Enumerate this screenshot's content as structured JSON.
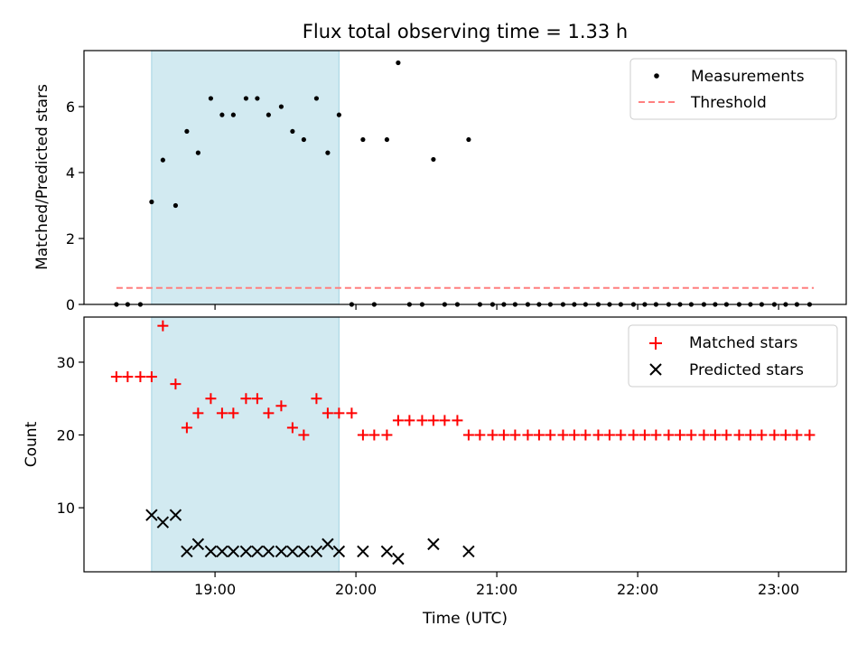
{
  "chart_data": {
    "type": "scatter",
    "title": "Flux total observing time = 1.33 h",
    "xlabel": "Time (UTC)",
    "x_ticks": [
      "19:00",
      "20:00",
      "21:00",
      "22:00",
      "23:00"
    ],
    "x_tick_hours": [
      19,
      20,
      21,
      22,
      23
    ],
    "xlim": [
      18.07,
      23.48
    ],
    "shaded_interval": {
      "start": 18.55,
      "end": 19.88,
      "color": "#add8e6"
    },
    "colors": {
      "measurements": "#000000",
      "threshold": "#ff7f7f",
      "matched": "#ff0000",
      "predicted": "#000000",
      "shade": "#add8e6"
    },
    "panels": [
      {
        "id": "top",
        "ylabel": "Matched/Predicted stars",
        "ylim": [
          0,
          7.7
        ],
        "y_ticks": [
          0,
          2,
          4,
          6
        ],
        "legend": {
          "placement": "top-right",
          "entries": [
            "Measurements",
            "Threshold"
          ]
        },
        "threshold": {
          "name": "Threshold",
          "value": 0.5,
          "x_range": [
            18.3,
            23.25
          ]
        },
        "series": [
          {
            "name": "Measurements",
            "marker": "dot",
            "x": [
              18.3,
              18.38,
              18.47,
              18.55,
              18.63,
              18.72,
              18.8,
              18.88,
              18.97,
              19.05,
              19.13,
              19.22,
              19.3,
              19.38,
              19.47,
              19.55,
              19.63,
              19.72,
              19.8,
              19.88,
              19.97,
              20.05,
              20.13,
              20.22,
              20.3,
              20.38,
              20.47,
              20.55,
              20.63,
              20.72,
              20.8,
              20.88,
              20.97,
              21.05,
              21.13,
              21.22,
              21.3,
              21.38,
              21.47,
              21.55,
              21.63,
              21.72,
              21.8,
              21.88,
              21.97,
              22.05,
              22.13,
              22.22,
              22.3,
              22.38,
              22.47,
              22.55,
              22.63,
              22.72,
              22.8,
              22.88,
              22.97,
              23.05,
              23.13,
              23.22
            ],
            "y": [
              0,
              0,
              0,
              3.11,
              4.38,
              3.0,
              5.25,
              4.6,
              6.25,
              5.75,
              5.75,
              6.25,
              6.25,
              5.75,
              6.0,
              5.25,
              5.0,
              6.25,
              4.6,
              5.75,
              0,
              5.0,
              0,
              5.0,
              7.33,
              0,
              0,
              4.4,
              0,
              0,
              5.0,
              0,
              0,
              0,
              0,
              0,
              0,
              0,
              0,
              0,
              0,
              0,
              0,
              0,
              0,
              0,
              0,
              0,
              0,
              0,
              0,
              0,
              0,
              0,
              0,
              0,
              0,
              0,
              0,
              0
            ]
          }
        ]
      },
      {
        "id": "bottom",
        "ylabel": "Count",
        "ylim": [
          1.2,
          36.2
        ],
        "y_ticks": [
          10,
          20,
          30
        ],
        "legend": {
          "placement": "top-right",
          "entries": [
            "Matched stars",
            "Predicted stars"
          ]
        },
        "series": [
          {
            "name": "Matched stars",
            "marker": "plus",
            "x": [
              18.3,
              18.38,
              18.47,
              18.55,
              18.63,
              18.72,
              18.8,
              18.88,
              18.97,
              19.05,
              19.13,
              19.22,
              19.3,
              19.38,
              19.47,
              19.55,
              19.63,
              19.72,
              19.8,
              19.88,
              19.97,
              20.05,
              20.13,
              20.22,
              20.3,
              20.38,
              20.47,
              20.55,
              20.63,
              20.72,
              20.8,
              20.88,
              20.97,
              21.05,
              21.13,
              21.22,
              21.3,
              21.38,
              21.47,
              21.55,
              21.63,
              21.72,
              21.8,
              21.88,
              21.97,
              22.05,
              22.13,
              22.22,
              22.3,
              22.38,
              22.47,
              22.55,
              22.63,
              22.72,
              22.8,
              22.88,
              22.97,
              23.05,
              23.13,
              23.22
            ],
            "y": [
              28,
              28,
              28,
              28,
              35,
              27,
              21,
              23,
              25,
              23,
              23,
              25,
              25,
              23,
              24,
              21,
              20,
              25,
              23,
              23,
              23,
              20,
              20,
              20,
              22,
              22,
              22,
              22,
              22,
              22,
              20,
              20,
              20,
              20,
              20,
              20,
              20,
              20,
              20,
              20,
              20,
              20,
              20,
              20,
              20,
              20,
              20,
              20,
              20,
              20,
              20,
              20,
              20,
              20,
              20,
              20,
              20,
              20,
              20,
              20
            ]
          },
          {
            "name": "Predicted stars",
            "marker": "x",
            "x": [
              18.55,
              18.63,
              18.72,
              18.8,
              18.88,
              18.97,
              19.05,
              19.13,
              19.22,
              19.3,
              19.38,
              19.47,
              19.55,
              19.63,
              19.72,
              19.8,
              19.88,
              20.05,
              20.22,
              20.3,
              20.55,
              20.8
            ],
            "y": [
              9,
              8,
              9,
              4,
              5,
              4,
              4,
              4,
              4,
              4,
              4,
              4,
              4,
              4,
              4,
              5,
              4,
              4,
              4,
              3,
              5,
              4
            ]
          }
        ]
      }
    ]
  }
}
